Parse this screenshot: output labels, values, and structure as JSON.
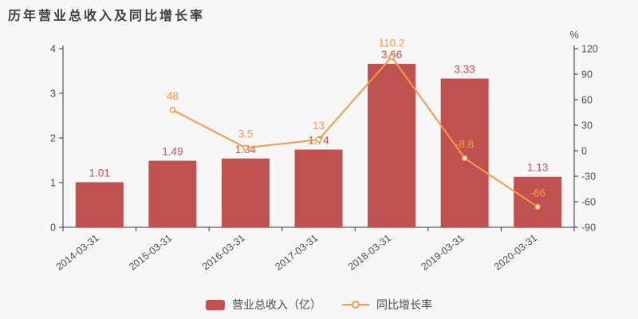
{
  "title": "历年营业总收入及同比增长率",
  "colors": {
    "background": "#f7f7f7",
    "axis_line": "#333333",
    "tick_label": "#4d4d4d",
    "bar": "#bf5150",
    "bar_label": "#c4504f",
    "line": "#f79a49",
    "line_label": "#f79a49",
    "title_text": "#3c3c3c",
    "legend_text": "#4a4a4a",
    "marker_fill": "#ffffff"
  },
  "legend": {
    "items": [
      {
        "label": "营业总收入（亿）",
        "marker": "bar-swatch"
      },
      {
        "label": "同比增长率",
        "marker": "line-dot"
      }
    ]
  },
  "chart_data": {
    "type": "bar+line",
    "title": "历年营业总收入及同比增长率",
    "categories": [
      "2014-03-31",
      "2015-03-31",
      "2016-03-31",
      "2017-03-31",
      "2018-03-31",
      "2019-03-31",
      "2020-03-31"
    ],
    "series": [
      {
        "name": "营业总收入（亿）",
        "type": "bar",
        "axis": "left",
        "values": [
          1.01,
          1.49,
          1.54,
          1.74,
          3.66,
          3.33,
          1.13
        ]
      },
      {
        "name": "同比增长率",
        "type": "line",
        "axis": "right",
        "values": [
          null,
          48,
          3.5,
          13,
          110.2,
          -8.8,
          -66
        ]
      }
    ],
    "left_axis": {
      "min": 0,
      "max": 4,
      "ticks": [
        0,
        1,
        2,
        3,
        4
      ]
    },
    "right_axis": {
      "min": -90,
      "max": 120,
      "ticks": [
        120,
        90,
        60,
        30,
        0,
        -30,
        -60,
        -90
      ],
      "unit": "%"
    },
    "grid": "off",
    "legend_position": "bottom",
    "x_label_rotation": -38
  }
}
